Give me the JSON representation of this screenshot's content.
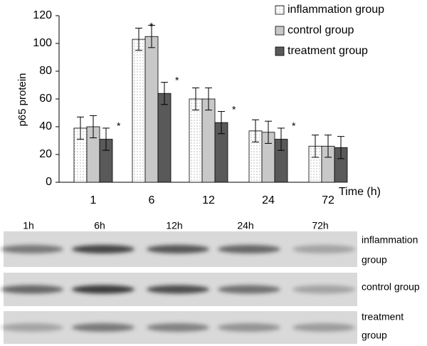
{
  "chart_data": {
    "type": "bar",
    "y_label": "p65 protein",
    "x_label": "Time (h)",
    "categories": [
      "1",
      "6",
      "12",
      "24",
      "72"
    ],
    "series": [
      {
        "name": "inflammation group",
        "color": "#ffffff",
        "values": [
          39,
          103,
          60,
          37,
          26
        ],
        "errors": [
          8,
          8,
          8,
          8,
          8
        ]
      },
      {
        "name": "control group",
        "color": "#c8c8c8",
        "values": [
          40,
          105,
          60,
          36,
          26
        ],
        "errors": [
          8,
          8,
          8,
          8,
          8
        ]
      },
      {
        "name": "treatment group",
        "color": "#595959",
        "values": [
          31,
          64,
          43,
          31,
          25
        ],
        "errors": [
          8,
          8,
          8,
          8,
          8
        ]
      }
    ],
    "ylim": [
      0,
      120
    ],
    "yticks": [
      0,
      20,
      40,
      60,
      80,
      100,
      120
    ],
    "legend": "top-right",
    "annotations": [
      {
        "text": "*",
        "category": "1",
        "series": "treatment group"
      },
      {
        "text": "*",
        "category": "6",
        "series": "inflammation group"
      },
      {
        "text": "*",
        "category": "6",
        "series": "treatment group"
      },
      {
        "text": "*",
        "category": "12",
        "series": "treatment group"
      },
      {
        "text": "*",
        "category": "24",
        "series": "treatment group"
      }
    ]
  },
  "blot": {
    "lanes": [
      "1h",
      "6h",
      "12h",
      "24h",
      "72h"
    ],
    "rows": [
      {
        "label_lines": [
          "inflammation",
          "group"
        ]
      },
      {
        "label_lines": [
          "control group"
        ]
      },
      {
        "label_lines": [
          "treatment",
          "group"
        ]
      }
    ]
  }
}
